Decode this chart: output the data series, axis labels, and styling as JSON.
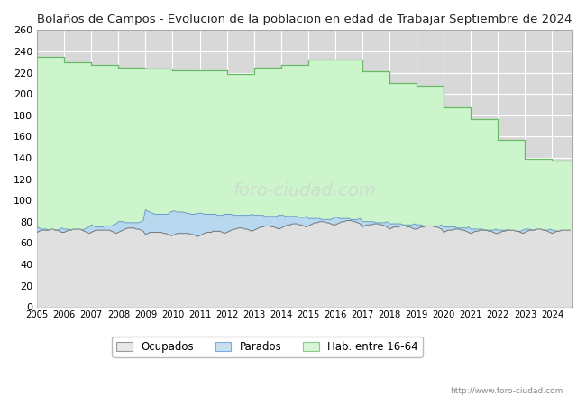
{
  "title": "Bolaños de Campos - Evolucion de la poblacion en edad de Trabajar Septiembre de 2024",
  "title_fontsize": 9.5,
  "ylim": [
    0,
    260
  ],
  "yticks": [
    0,
    20,
    40,
    60,
    80,
    100,
    120,
    140,
    160,
    180,
    200,
    220,
    240,
    260
  ],
  "background_color": "#ffffff",
  "plot_bg_color": "#d8d8d8",
  "grid_color": "#ffffff",
  "url_text": "http://www.foro-ciudad.com",
  "legend_labels": [
    "Ocupados",
    "Parados",
    "Hab. entre 16-64"
  ],
  "legend_facecolors": [
    "#e8e8e8",
    "#c8dff0",
    "#d8f5d8"
  ],
  "legend_edgecolors": [
    "#999999",
    "#7aaedd",
    "#88cc88"
  ],
  "hab_color": "#ccf5cc",
  "hab_edge_color": "#66bb66",
  "parados_color": "#b8d8f0",
  "parados_edge_color": "#6699cc",
  "ocupados_color": "#e0e0e0",
  "ocupados_edge_color": "#777777",
  "watermark_color": "#cccccc",
  "hab_annual": [
    235,
    230,
    227,
    225,
    224,
    222,
    222,
    219,
    225,
    227,
    232,
    232,
    221,
    210,
    208,
    187,
    176,
    157,
    139,
    137
  ],
  "years_annual": [
    2005,
    2006,
    2007,
    2008,
    2009,
    2010,
    2011,
    2012,
    2013,
    2014,
    2015,
    2016,
    2017,
    2018,
    2019,
    2020,
    2021,
    2022,
    2023,
    2024
  ],
  "parados_x": [
    2005.0,
    2005.083,
    2005.167,
    2005.25,
    2005.333,
    2005.417,
    2005.5,
    2005.583,
    2005.667,
    2005.75,
    2005.833,
    2005.917,
    2006.0,
    2006.083,
    2006.167,
    2006.25,
    2006.333,
    2006.417,
    2006.5,
    2006.583,
    2006.667,
    2006.75,
    2006.833,
    2006.917,
    2007.0,
    2007.083,
    2007.167,
    2007.25,
    2007.333,
    2007.417,
    2007.5,
    2007.583,
    2007.667,
    2007.75,
    2007.833,
    2007.917,
    2008.0,
    2008.083,
    2008.167,
    2008.25,
    2008.333,
    2008.417,
    2008.5,
    2008.583,
    2008.667,
    2008.75,
    2008.833,
    2008.917,
    2009.0,
    2009.083,
    2009.167,
    2009.25,
    2009.333,
    2009.417,
    2009.5,
    2009.583,
    2009.667,
    2009.75,
    2009.833,
    2009.917,
    2010.0,
    2010.083,
    2010.167,
    2010.25,
    2010.333,
    2010.417,
    2010.5,
    2010.583,
    2010.667,
    2010.75,
    2010.833,
    2010.917,
    2011.0,
    2011.083,
    2011.167,
    2011.25,
    2011.333,
    2011.417,
    2011.5,
    2011.583,
    2011.667,
    2011.75,
    2011.833,
    2011.917,
    2012.0,
    2012.083,
    2012.167,
    2012.25,
    2012.333,
    2012.417,
    2012.5,
    2012.583,
    2012.667,
    2012.75,
    2012.833,
    2012.917,
    2013.0,
    2013.083,
    2013.167,
    2013.25,
    2013.333,
    2013.417,
    2013.5,
    2013.583,
    2013.667,
    2013.75,
    2013.833,
    2013.917,
    2014.0,
    2014.083,
    2014.167,
    2014.25,
    2014.333,
    2014.417,
    2014.5,
    2014.583,
    2014.667,
    2014.75,
    2014.833,
    2014.917,
    2015.0,
    2015.083,
    2015.167,
    2015.25,
    2015.333,
    2015.417,
    2015.5,
    2015.583,
    2015.667,
    2015.75,
    2015.833,
    2015.917,
    2016.0,
    2016.083,
    2016.167,
    2016.25,
    2016.333,
    2016.417,
    2016.5,
    2016.583,
    2016.667,
    2016.75,
    2016.833,
    2016.917,
    2017.0,
    2017.083,
    2017.167,
    2017.25,
    2017.333,
    2017.417,
    2017.5,
    2017.583,
    2017.667,
    2017.75,
    2017.833,
    2017.917,
    2018.0,
    2018.083,
    2018.167,
    2018.25,
    2018.333,
    2018.417,
    2018.5,
    2018.583,
    2018.667,
    2018.75,
    2018.833,
    2018.917,
    2019.0,
    2019.083,
    2019.167,
    2019.25,
    2019.333,
    2019.417,
    2019.5,
    2019.583,
    2019.667,
    2019.75,
    2019.833,
    2019.917,
    2020.0,
    2020.083,
    2020.167,
    2020.25,
    2020.333,
    2020.417,
    2020.5,
    2020.583,
    2020.667,
    2020.75,
    2020.833,
    2020.917,
    2021.0,
    2021.083,
    2021.167,
    2021.25,
    2021.333,
    2021.417,
    2021.5,
    2021.583,
    2021.667,
    2021.75,
    2021.833,
    2021.917,
    2022.0,
    2022.083,
    2022.167,
    2022.25,
    2022.333,
    2022.417,
    2022.5,
    2022.583,
    2022.667,
    2022.75,
    2022.833,
    2022.917,
    2023.0,
    2023.083,
    2023.167,
    2023.25,
    2023.333,
    2023.417,
    2023.5,
    2023.583,
    2023.667,
    2023.75,
    2023.833,
    2023.917,
    2024.0,
    2024.083,
    2024.167,
    2024.25,
    2024.333,
    2024.417,
    2024.5,
    2024.583,
    2024.667
  ],
  "parados_y": [
    75,
    74,
    73,
    73,
    73,
    72,
    71,
    71,
    72,
    72,
    73,
    74,
    73,
    73,
    73,
    72,
    72,
    72,
    72,
    72,
    72,
    73,
    74,
    75,
    77,
    76,
    75,
    75,
    75,
    75,
    76,
    76,
    76,
    76,
    77,
    78,
    80,
    80,
    80,
    79,
    79,
    79,
    79,
    79,
    79,
    79,
    80,
    81,
    91,
    90,
    89,
    88,
    87,
    87,
    87,
    87,
    87,
    87,
    87,
    89,
    90,
    90,
    89,
    89,
    89,
    89,
    88,
    88,
    87,
    87,
    87,
    88,
    88,
    88,
    87,
    87,
    87,
    87,
    87,
    87,
    86,
    86,
    86,
    87,
    87,
    87,
    87,
    86,
    86,
    86,
    86,
    86,
    86,
    86,
    86,
    87,
    86,
    86,
    86,
    86,
    86,
    85,
    85,
    85,
    85,
    85,
    85,
    86,
    86,
    86,
    85,
    85,
    85,
    85,
    85,
    85,
    84,
    84,
    84,
    85,
    83,
    83,
    83,
    83,
    83,
    83,
    82,
    82,
    82,
    82,
    82,
    83,
    84,
    84,
    83,
    83,
    83,
    83,
    83,
    82,
    82,
    82,
    82,
    83,
    80,
    80,
    80,
    80,
    80,
    80,
    79,
    79,
    79,
    79,
    79,
    80,
    78,
    78,
    78,
    78,
    78,
    78,
    77,
    77,
    77,
    77,
    77,
    78,
    77,
    77,
    77,
    76,
    76,
    76,
    76,
    76,
    76,
    76,
    76,
    77,
    75,
    75,
    75,
    75,
    75,
    75,
    74,
    74,
    74,
    74,
    74,
    75,
    73,
    73,
    73,
    73,
    73,
    73,
    72,
    72,
    72,
    72,
    72,
    73,
    72,
    72,
    72,
    72,
    72,
    72,
    71,
    71,
    71,
    71,
    71,
    72,
    73,
    73,
    73,
    72,
    72,
    72,
    72,
    72,
    72,
    72,
    72,
    73,
    72,
    72,
    71,
    71,
    71,
    71,
    71,
    71,
    71
  ],
  "ocupados_y": [
    70,
    71,
    72,
    72,
    72,
    72,
    73,
    73,
    72,
    72,
    71,
    70,
    70,
    71,
    72,
    72,
    73,
    73,
    73,
    73,
    72,
    71,
    70,
    69,
    70,
    71,
    72,
    72,
    72,
    72,
    72,
    72,
    72,
    71,
    70,
    69,
    70,
    71,
    72,
    73,
    74,
    74,
    74,
    74,
    73,
    73,
    72,
    71,
    68,
    69,
    70,
    70,
    70,
    70,
    70,
    70,
    69,
    69,
    68,
    67,
    67,
    68,
    69,
    69,
    69,
    69,
    69,
    69,
    68,
    68,
    67,
    66,
    67,
    68,
    69,
    70,
    70,
    70,
    71,
    71,
    71,
    71,
    70,
    69,
    70,
    71,
    72,
    73,
    73,
    74,
    74,
    74,
    73,
    73,
    72,
    71,
    72,
    73,
    74,
    75,
    75,
    76,
    76,
    76,
    75,
    75,
    74,
    73,
    74,
    75,
    76,
    77,
    77,
    78,
    78,
    78,
    77,
    77,
    76,
    75,
    76,
    77,
    78,
    79,
    79,
    80,
    80,
    80,
    79,
    79,
    78,
    77,
    77,
    78,
    79,
    80,
    80,
    81,
    81,
    81,
    80,
    80,
    79,
    78,
    75,
    76,
    77,
    77,
    77,
    78,
    78,
    78,
    77,
    77,
    76,
    75,
    73,
    74,
    75,
    75,
    75,
    76,
    76,
    76,
    75,
    75,
    74,
    73,
    73,
    74,
    75,
    75,
    76,
    76,
    76,
    76,
    75,
    75,
    74,
    73,
    70,
    71,
    72,
    72,
    72,
    73,
    73,
    73,
    72,
    72,
    71,
    70,
    69,
    70,
    71,
    71,
    72,
    72,
    72,
    72,
    71,
    71,
    70,
    69,
    69,
    70,
    71,
    71,
    72,
    72,
    72,
    72,
    71,
    71,
    70,
    69,
    70,
    71,
    72,
    72,
    72,
    73,
    73,
    73,
    72,
    72,
    71,
    70,
    69,
    70,
    71,
    71,
    72,
    72,
    72,
    72,
    72
  ]
}
